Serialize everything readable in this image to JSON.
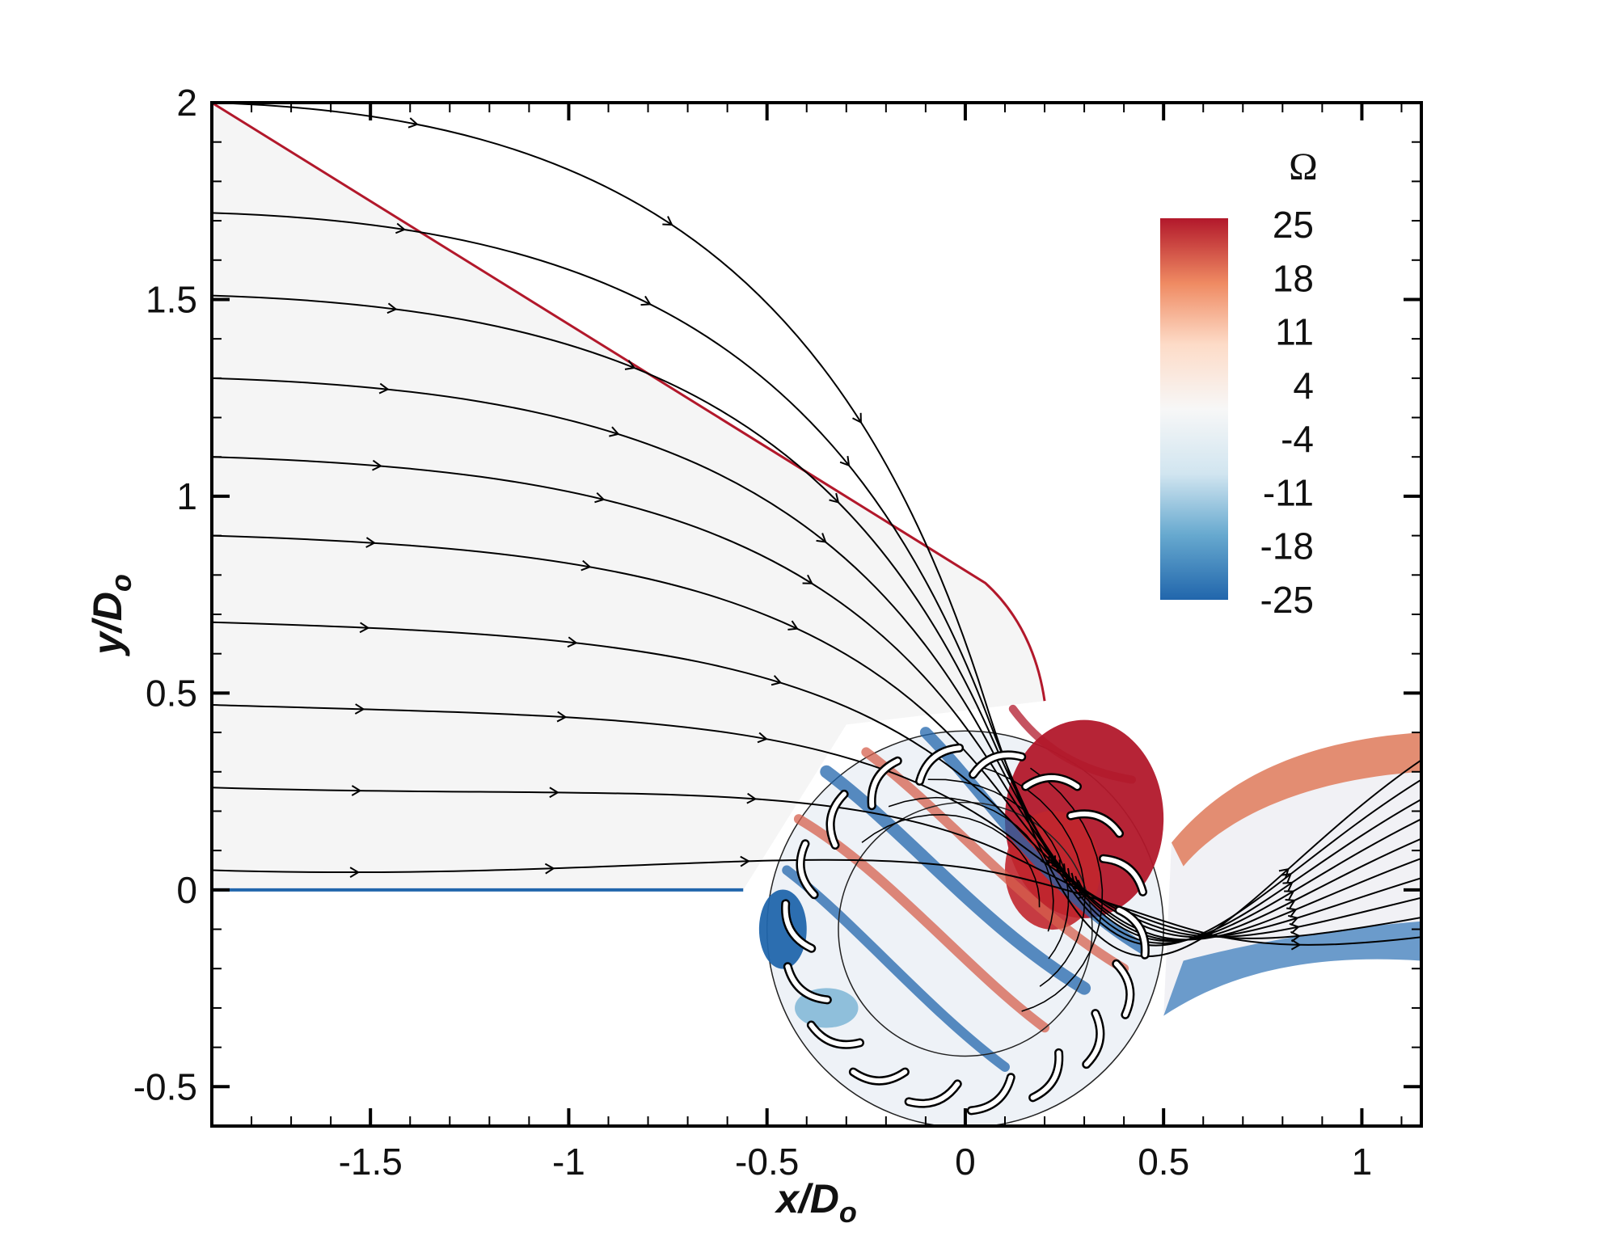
{
  "chart_data": {
    "type": "contour",
    "title": "",
    "xlabel": "x/D",
    "xlabel_sub": "o",
    "ylabel": "y/D",
    "ylabel_sub": "o",
    "xlim": [
      -1.9,
      1.15
    ],
    "ylim": [
      -0.6,
      2.0
    ],
    "xticks": [
      {
        "value": -1.5,
        "label": "-1.5"
      },
      {
        "value": -1.0,
        "label": "-1"
      },
      {
        "value": -0.5,
        "label": "-0.5"
      },
      {
        "value": 0.0,
        "label": "0"
      },
      {
        "value": 0.5,
        "label": "0.5"
      },
      {
        "value": 1.0,
        "label": "1"
      }
    ],
    "yticks": [
      {
        "value": -0.5,
        "label": "-0.5"
      },
      {
        "value": 0.0,
        "label": "0"
      },
      {
        "value": 0.5,
        "label": "0.5"
      },
      {
        "value": 1.0,
        "label": "1"
      },
      {
        "value": 1.5,
        "label": "1.5"
      },
      {
        "value": 2.0,
        "label": "2"
      }
    ],
    "colorbar": {
      "title": "Ω",
      "levels": [
        "25",
        "18",
        "11",
        "4",
        "-4",
        "-11",
        "-18",
        "-25"
      ],
      "min": -25,
      "max": 25,
      "colors": [
        "#b2182b",
        "#ef8a62",
        "#fddbc7",
        "#f7f7f7",
        "#d1e5f0",
        "#67a9cf",
        "#2166ac"
      ]
    },
    "geometry": {
      "rotor_center": [
        0.0,
        -0.1
      ],
      "rotor_outer_radius": 0.5,
      "rotor_inner_radius": 0.32,
      "blade_count": 18,
      "inlet_top_start": [
        -1.9,
        2.0
      ],
      "inlet_bottom_y": 0.0
    },
    "streamline_start_y": [
      2.0,
      1.72,
      1.51,
      1.3,
      1.1,
      0.9,
      0.68,
      0.47,
      0.26,
      0.05
    ]
  }
}
